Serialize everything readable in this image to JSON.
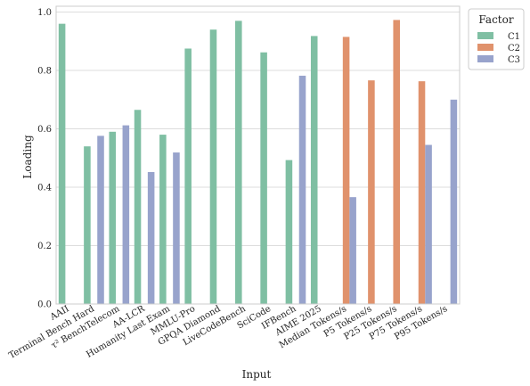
{
  "chart_data": {
    "type": "bar",
    "xlabel": "Input",
    "ylabel": "Loading",
    "ylim": [
      0,
      1.02
    ],
    "yticks": [
      "0.0",
      "0.2",
      "0.4",
      "0.6",
      "0.8",
      "1.0"
    ],
    "grid": "horizontal",
    "legend": {
      "title": "Factor",
      "placement": "outside-top-right"
    },
    "categories": [
      "AAII",
      "Terminal Bench Hard",
      "τ² BenchTelecom",
      "AA-LCR",
      "Humanity Last Exam",
      "MMLU-Pro",
      "GPQA Diamond",
      "LiveCodeBench",
      "SciCode",
      "IFBench",
      "AIME 2025",
      "Median Tokens/s",
      "P5 Tokens/s",
      "P25 Tokens/s",
      "P75 Tokens/s",
      "P95 Tokens/s"
    ],
    "series": [
      {
        "name": "C1",
        "color": "#7fbfa3",
        "values": [
          0.96,
          0.54,
          0.59,
          0.665,
          0.58,
          0.875,
          0.94,
          0.97,
          0.862,
          0.493,
          0.918,
          null,
          null,
          null,
          null,
          null
        ]
      },
      {
        "name": "C2",
        "color": "#e0926c",
        "values": [
          null,
          null,
          null,
          null,
          null,
          null,
          null,
          null,
          null,
          null,
          null,
          0.915,
          0.766,
          0.973,
          0.763,
          null
        ]
      },
      {
        "name": "C3",
        "color": "#98a3cc",
        "values": [
          null,
          0.576,
          0.612,
          0.452,
          0.519,
          null,
          null,
          null,
          null,
          0.782,
          null,
          0.366,
          null,
          null,
          0.545,
          0.7
        ]
      }
    ]
  }
}
